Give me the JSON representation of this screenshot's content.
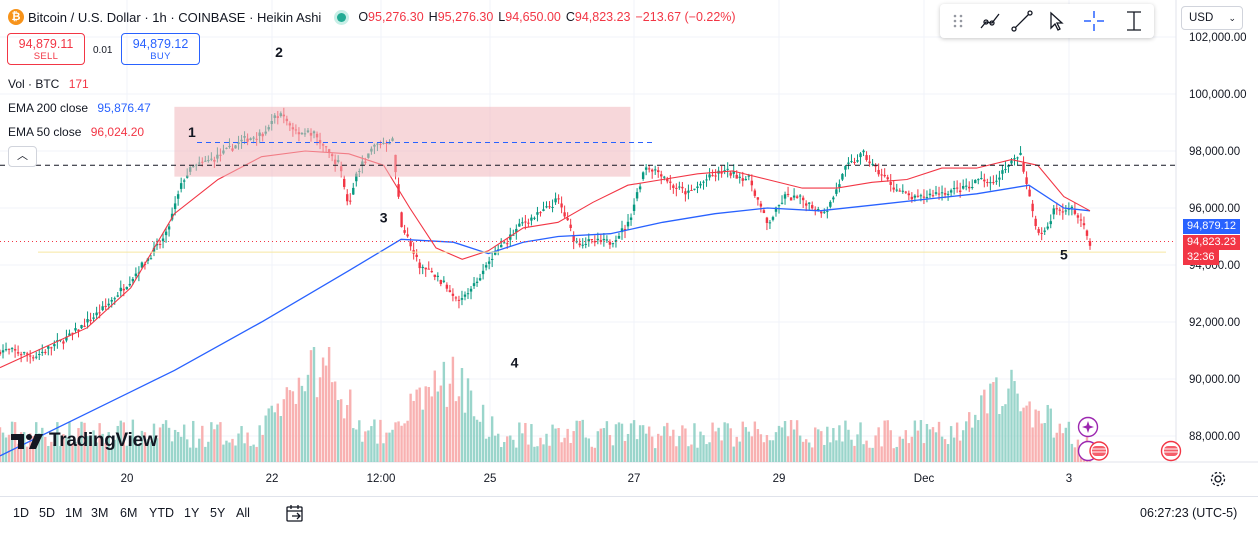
{
  "header": {
    "title": "Bitcoin / U.S. Dollar · 1h · COINBASE · Heikin Ashi",
    "ohlc": [
      {
        "k": "O",
        "v": "95,276.30"
      },
      {
        "k": "H",
        "v": "95,276.30"
      },
      {
        "k": "L",
        "v": "94,650.00"
      },
      {
        "k": "C",
        "v": "94,823.23"
      }
    ],
    "change": "−213.67 (−0.22%)"
  },
  "trade": {
    "sell_price": "94,879.11",
    "sell_label": "SELL",
    "buy_price": "94,879.12",
    "buy_label": "BUY",
    "spread": "0.01"
  },
  "indicators": {
    "vol_label": "Vol · BTC",
    "vol_value": "171",
    "ema200_label": "EMA 200 close",
    "ema200_value": "95,876.47",
    "ema50_label": "EMA 50 close",
    "ema50_value": "96,024.20"
  },
  "toolbar": {
    "tools": [
      "drag-handle-icon",
      "trend-line-icon",
      "line-icon",
      "cursor-icon",
      "crosshair-icon",
      "measure-icon"
    ]
  },
  "currency": "USD",
  "price_tags": {
    "last": "94,879.12",
    "close": "94,823.23",
    "countdown": "32:36"
  },
  "brand": "TradingView",
  "bottom": {
    "ranges": [
      "1D",
      "5D",
      "1M",
      "3M",
      "6M",
      "YTD",
      "1Y",
      "5Y",
      "All"
    ],
    "clock": "06:27:23 (UTC-5)"
  },
  "colors": {
    "up": "#089981",
    "down": "#f23645",
    "ema200": "#2962ff",
    "ema50": "#f23645",
    "box": "#f0b6bb"
  },
  "chart_data": {
    "type": "candlestick",
    "style": "Heikin Ashi",
    "y_ticks": [
      88000,
      90000,
      92000,
      94000,
      96000,
      98000,
      100000,
      102000
    ],
    "y_tick_labels": [
      "88,000.00",
      "90,000.00",
      "92,000.00",
      "94,000.00",
      "96,000.00",
      "98,000.00",
      "100,000.00",
      "102,000.00"
    ],
    "x_ticks": [
      {
        "label": "20",
        "x": 20.0
      },
      {
        "label": "22",
        "x": 22.0
      },
      {
        "label": "12:00",
        "x": 22.5
      },
      {
        "label": "25",
        "x": 23.0
      },
      {
        "label": "27",
        "x": 24.0
      },
      {
        "label": "29",
        "x": 25.0
      },
      {
        "label": "Dec",
        "x": 26.0
      },
      {
        "label": "3",
        "x": 27.0
      }
    ],
    "close_path": [
      [
        19.1,
        91000
      ],
      [
        19.4,
        90800
      ],
      [
        19.8,
        91500
      ],
      [
        20.2,
        92500
      ],
      [
        20.5,
        93500
      ],
      [
        20.9,
        95000
      ],
      [
        21.1,
        97000
      ],
      [
        21.2,
        97400
      ],
      [
        21.5,
        97800
      ],
      [
        21.8,
        98400
      ],
      [
        22.0,
        98600
      ],
      [
        22.2,
        99300
      ],
      [
        22.4,
        98700
      ],
      [
        22.6,
        98600
      ],
      [
        22.8,
        97800
      ],
      [
        22.9,
        97500
      ],
      [
        23.0,
        96000
      ],
      [
        23.1,
        97300
      ],
      [
        23.3,
        98200
      ],
      [
        23.5,
        98400
      ],
      [
        23.6,
        95500
      ],
      [
        23.8,
        94000
      ],
      [
        24.0,
        93600
      ],
      [
        24.2,
        93000
      ],
      [
        24.3,
        92800
      ],
      [
        24.5,
        93500
      ],
      [
        24.6,
        94200
      ],
      [
        24.8,
        94800
      ],
      [
        25.0,
        95500
      ],
      [
        25.2,
        95800
      ],
      [
        25.4,
        96300
      ],
      [
        25.6,
        94800
      ],
      [
        25.8,
        94800
      ],
      [
        26.0,
        94800
      ],
      [
        26.2,
        95400
      ],
      [
        26.4,
        97500
      ],
      [
        26.6,
        97200
      ],
      [
        26.7,
        96800
      ],
      [
        26.9,
        96500
      ],
      [
        27.1,
        97000
      ],
      [
        27.3,
        97300
      ],
      [
        27.6,
        97000
      ],
      [
        27.8,
        95400
      ],
      [
        28.0,
        96400
      ],
      [
        28.2,
        96300
      ],
      [
        28.4,
        95900
      ],
      [
        28.5,
        96000
      ],
      [
        28.7,
        97400
      ],
      [
        28.9,
        97900
      ],
      [
        29.0,
        97500
      ],
      [
        29.1,
        97200
      ],
      [
        29.3,
        96600
      ],
      [
        29.5,
        96300
      ],
      [
        29.7,
        96500
      ],
      [
        29.9,
        96600
      ],
      [
        30.1,
        96700
      ],
      [
        30.2,
        97000
      ],
      [
        30.3,
        97000
      ],
      [
        30.4,
        97000
      ],
      [
        30.6,
        97600
      ],
      [
        30.7,
        97900
      ],
      [
        30.8,
        96400
      ],
      [
        30.9,
        95200
      ],
      [
        31.0,
        95100
      ],
      [
        31.1,
        96000
      ],
      [
        31.2,
        95800
      ],
      [
        31.3,
        96000
      ],
      [
        31.4,
        95500
      ],
      [
        31.5,
        94800
      ]
    ],
    "ema200_path": [
      [
        19.0,
        87300
      ],
      [
        20.0,
        88800
      ],
      [
        21.0,
        90300
      ],
      [
        22.0,
        92000
      ],
      [
        23.0,
        93800
      ],
      [
        23.6,
        94900
      ],
      [
        24.2,
        94800
      ],
      [
        24.6,
        94400
      ],
      [
        25.0,
        94800
      ],
      [
        25.4,
        95000
      ],
      [
        26.0,
        95100
      ],
      [
        26.6,
        95500
      ],
      [
        27.2,
        95800
      ],
      [
        27.8,
        96000
      ],
      [
        28.4,
        95900
      ],
      [
        29.0,
        96100
      ],
      [
        29.6,
        96300
      ],
      [
        30.2,
        96500
      ],
      [
        30.8,
        96800
      ],
      [
        31.2,
        96000
      ],
      [
        31.5,
        95900
      ]
    ],
    "ema50_path": [
      [
        19.0,
        90400
      ],
      [
        20.0,
        91800
      ],
      [
        20.5,
        93200
      ],
      [
        21.0,
        95800
      ],
      [
        21.5,
        97000
      ],
      [
        22.0,
        97800
      ],
      [
        22.5,
        98000
      ],
      [
        23.0,
        97900
      ],
      [
        23.4,
        97500
      ],
      [
        23.7,
        96000
      ],
      [
        24.0,
        94600
      ],
      [
        24.3,
        94200
      ],
      [
        24.6,
        94500
      ],
      [
        25.0,
        95300
      ],
      [
        25.4,
        95500
      ],
      [
        25.8,
        96200
      ],
      [
        26.2,
        96800
      ],
      [
        26.6,
        97000
      ],
      [
        27.0,
        97200
      ],
      [
        27.4,
        97300
      ],
      [
        27.8,
        97000
      ],
      [
        28.2,
        96700
      ],
      [
        28.6,
        96700
      ],
      [
        29.0,
        96900
      ],
      [
        29.4,
        97000
      ],
      [
        29.8,
        97400
      ],
      [
        30.2,
        97400
      ],
      [
        30.6,
        97700
      ],
      [
        30.9,
        97500
      ],
      [
        31.2,
        96400
      ],
      [
        31.5,
        95900
      ]
    ],
    "h_lines": [
      {
        "y": 97500,
        "style": "dashed"
      },
      {
        "y": 94823.23,
        "style": "dotted"
      }
    ],
    "rect": {
      "x1": 21.0,
      "x2": 24.3,
      "y1": 97100,
      "y2": 99550,
      "mid": 98300
    },
    "labels": [
      {
        "text": "1",
        "x": 21.2,
        "y": 98500
      },
      {
        "text": "2",
        "x": 22.2,
        "y": 101300
      },
      {
        "text": "3",
        "x": 23.4,
        "y": 95500
      },
      {
        "text": "4",
        "x": 24.9,
        "y": 90400
      },
      {
        "text": "5",
        "x": 31.2,
        "y": 94200
      }
    ],
    "volume_peaks": [
      {
        "x": 22.6,
        "v": 1.0
      },
      {
        "x": 24.1,
        "v": 0.8
      },
      {
        "x": 30.6,
        "v": 0.6
      }
    ]
  }
}
